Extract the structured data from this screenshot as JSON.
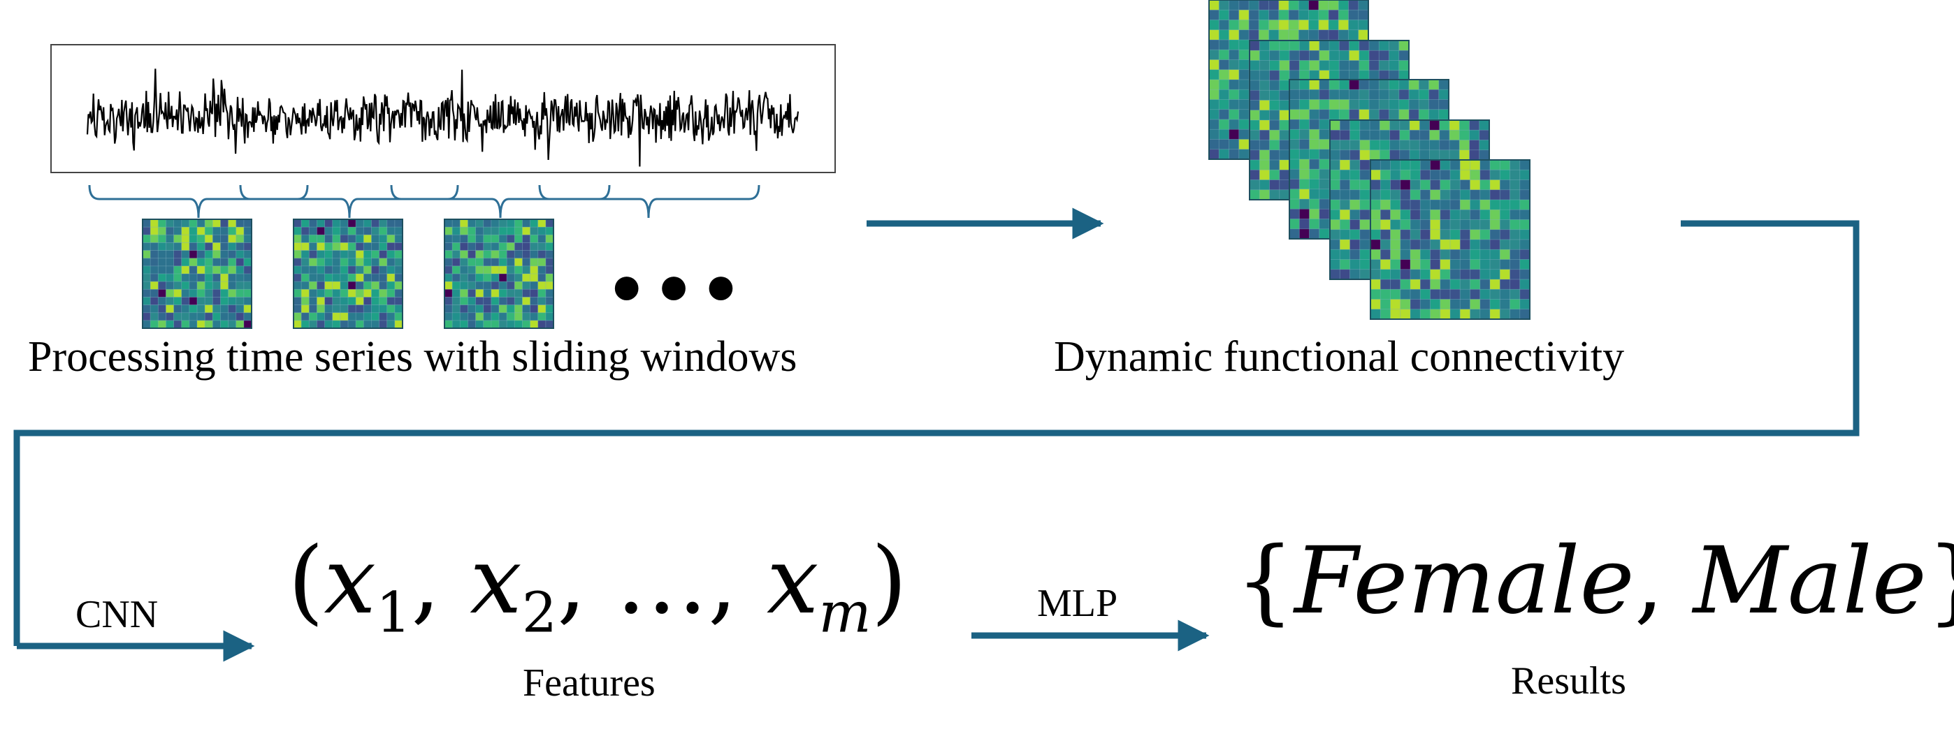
{
  "labels": {
    "sliding": "Processing time series with sliding windows",
    "dfc": "Dynamic functional connectivity",
    "cnn": "CNN",
    "mlp": "MLP",
    "features": "Features",
    "results": "Results",
    "ellipsis": "•••"
  },
  "math": {
    "features_open": "(",
    "x": "x",
    "sub1": "1",
    "sub2": "2",
    "subm": "m",
    "comma": ",",
    "dots": "…",
    "features_close": ")",
    "results_open": "{",
    "female": "Female",
    "male": "Male",
    "results_close": "}"
  },
  "colors": {
    "arrow": "#1b6283",
    "signal": "#000000",
    "bracket": "#2e6f96",
    "matrix_base": "#2d8a8c",
    "matrix_grid": "#7fb0c0"
  },
  "icons": {
    "signal": "time-series-signal",
    "matrix": "connectivity-matrix-heatmap"
  }
}
